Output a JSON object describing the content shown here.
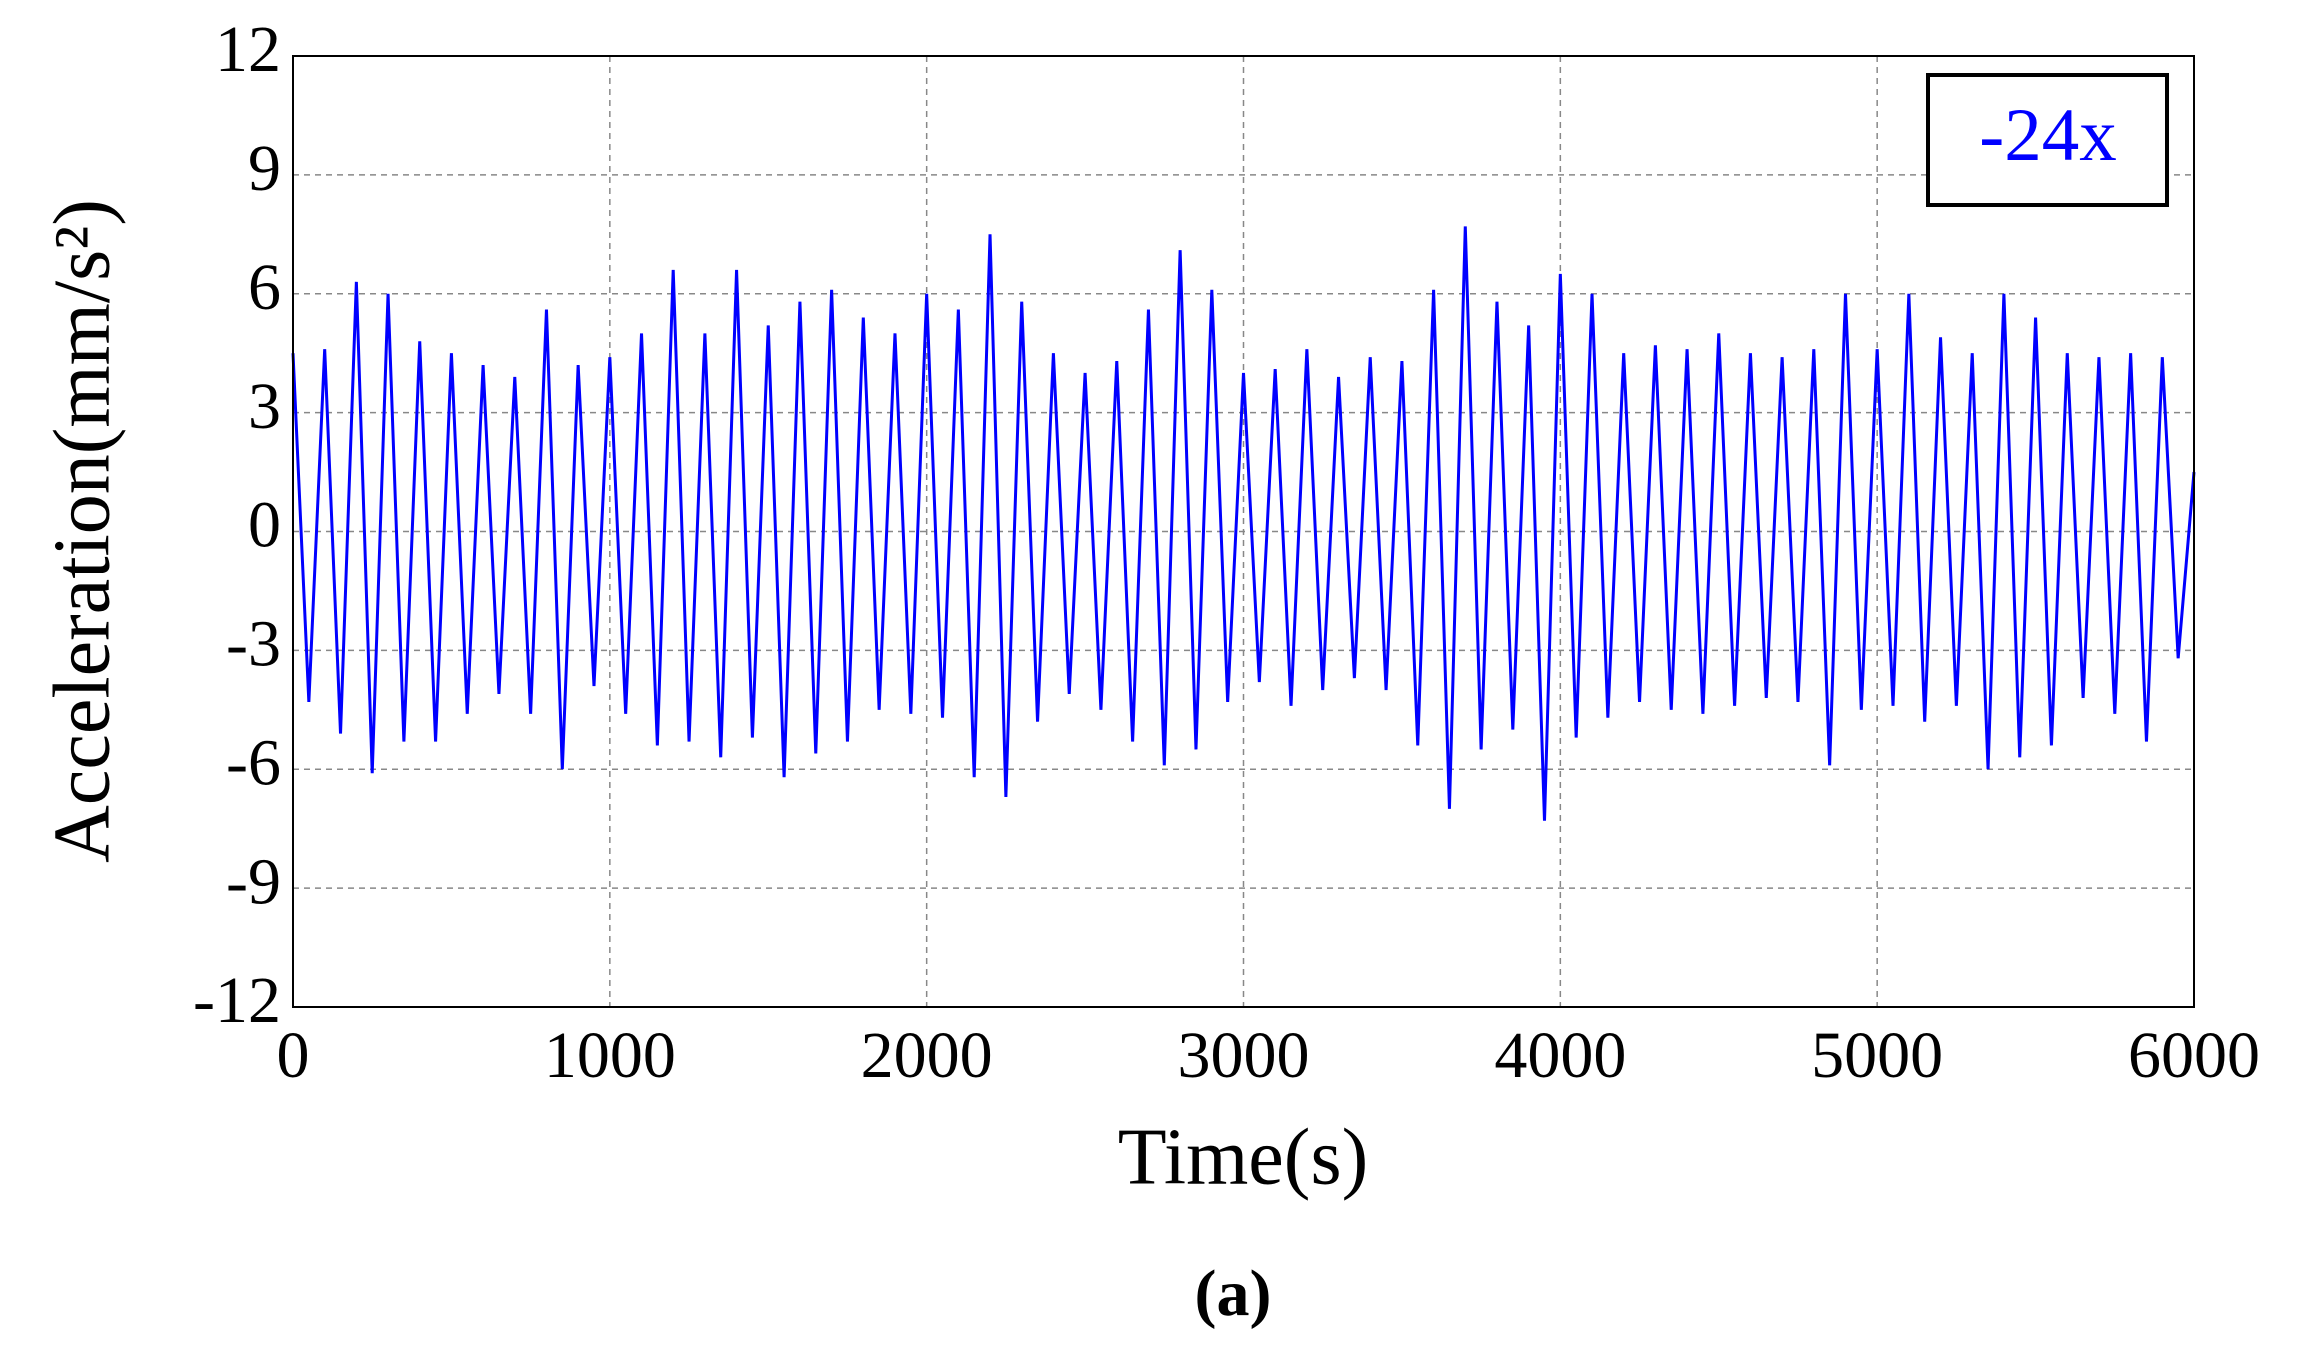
{
  "chart_data": {
    "type": "line",
    "x_label": "Time(s)",
    "y_label": "Acceleration(mm/s²)",
    "caption": "(a)",
    "x": [
      0,
      50,
      100,
      150,
      200,
      250,
      300,
      350,
      400,
      450,
      500,
      550,
      600,
      650,
      700,
      750,
      800,
      850,
      900,
      950,
      1000,
      1050,
      1100,
      1150,
      1200,
      1250,
      1300,
      1350,
      1400,
      1450,
      1500,
      1550,
      1600,
      1650,
      1700,
      1750,
      1800,
      1850,
      1900,
      1950,
      2000,
      2050,
      2100,
      2150,
      2200,
      2250,
      2300,
      2350,
      2400,
      2450,
      2500,
      2550,
      2600,
      2650,
      2700,
      2750,
      2800,
      2850,
      2900,
      2950,
      3000,
      3050,
      3100,
      3150,
      3200,
      3250,
      3300,
      3350,
      3400,
      3450,
      3500,
      3550,
      3600,
      3650,
      3700,
      3750,
      3800,
      3850,
      3900,
      3950,
      4000,
      4050,
      4100,
      4150,
      4200,
      4250,
      4300,
      4350,
      4400,
      4450,
      4500,
      4550,
      4600,
      4650,
      4700,
      4750,
      4800,
      4850,
      4900,
      4950,
      5000,
      5050,
      5100,
      5150,
      5200,
      5250,
      5300,
      5350,
      5400,
      5450,
      5500,
      5550,
      5600,
      5650,
      5700,
      5750,
      5800,
      5850,
      5900,
      5950,
      6000
    ],
    "series": [
      {
        "name": "-24x",
        "color": "#0000ff",
        "values": [
          4.5,
          -4.3,
          4.6,
          -5.1,
          6.3,
          -6.1,
          6.0,
          -5.3,
          4.8,
          -5.3,
          4.5,
          -4.6,
          4.2,
          -4.1,
          3.9,
          -4.6,
          5.6,
          -6.0,
          4.2,
          -3.9,
          4.4,
          -4.6,
          5.0,
          -5.4,
          6.6,
          -5.3,
          5.0,
          -5.7,
          6.6,
          -5.2,
          5.2,
          -6.2,
          5.8,
          -5.6,
          6.1,
          -5.3,
          5.4,
          -4.5,
          5.0,
          -4.6,
          6.0,
          -4.7,
          5.6,
          -6.2,
          7.5,
          -6.7,
          5.8,
          -4.8,
          4.5,
          -4.1,
          4.0,
          -4.5,
          4.3,
          -5.3,
          5.6,
          -5.9,
          7.1,
          -5.5,
          6.1,
          -4.3,
          4.0,
          -3.8,
          4.1,
          -4.4,
          4.6,
          -4.0,
          3.9,
          -3.7,
          4.4,
          -4.0,
          4.3,
          -5.4,
          6.1,
          -7.0,
          7.7,
          -5.5,
          5.8,
          -5.0,
          5.2,
          -7.3,
          6.5,
          -5.2,
          6.0,
          -4.7,
          4.5,
          -4.3,
          4.7,
          -4.5,
          4.6,
          -4.6,
          5.0,
          -4.4,
          4.5,
          -4.2,
          4.4,
          -4.3,
          4.6,
          -5.9,
          6.0,
          -4.5,
          4.6,
          -4.4,
          6.0,
          -4.8,
          4.9,
          -4.4,
          4.5,
          -6.0,
          6.0,
          -5.7,
          5.4,
          -5.4,
          4.5,
          -4.2,
          4.4,
          -4.6,
          4.5,
          -5.3,
          4.4,
          -3.2,
          1.5
        ]
      }
    ],
    "xlim": [
      0,
      6000
    ],
    "xticks": [
      0,
      1000,
      2000,
      3000,
      4000,
      5000,
      6000
    ],
    "ylim": [
      -12,
      12
    ],
    "yticks": [
      -12,
      -9,
      -6,
      -3,
      0,
      3,
      6,
      9,
      12
    ],
    "grid": true,
    "legend": "upper right"
  }
}
